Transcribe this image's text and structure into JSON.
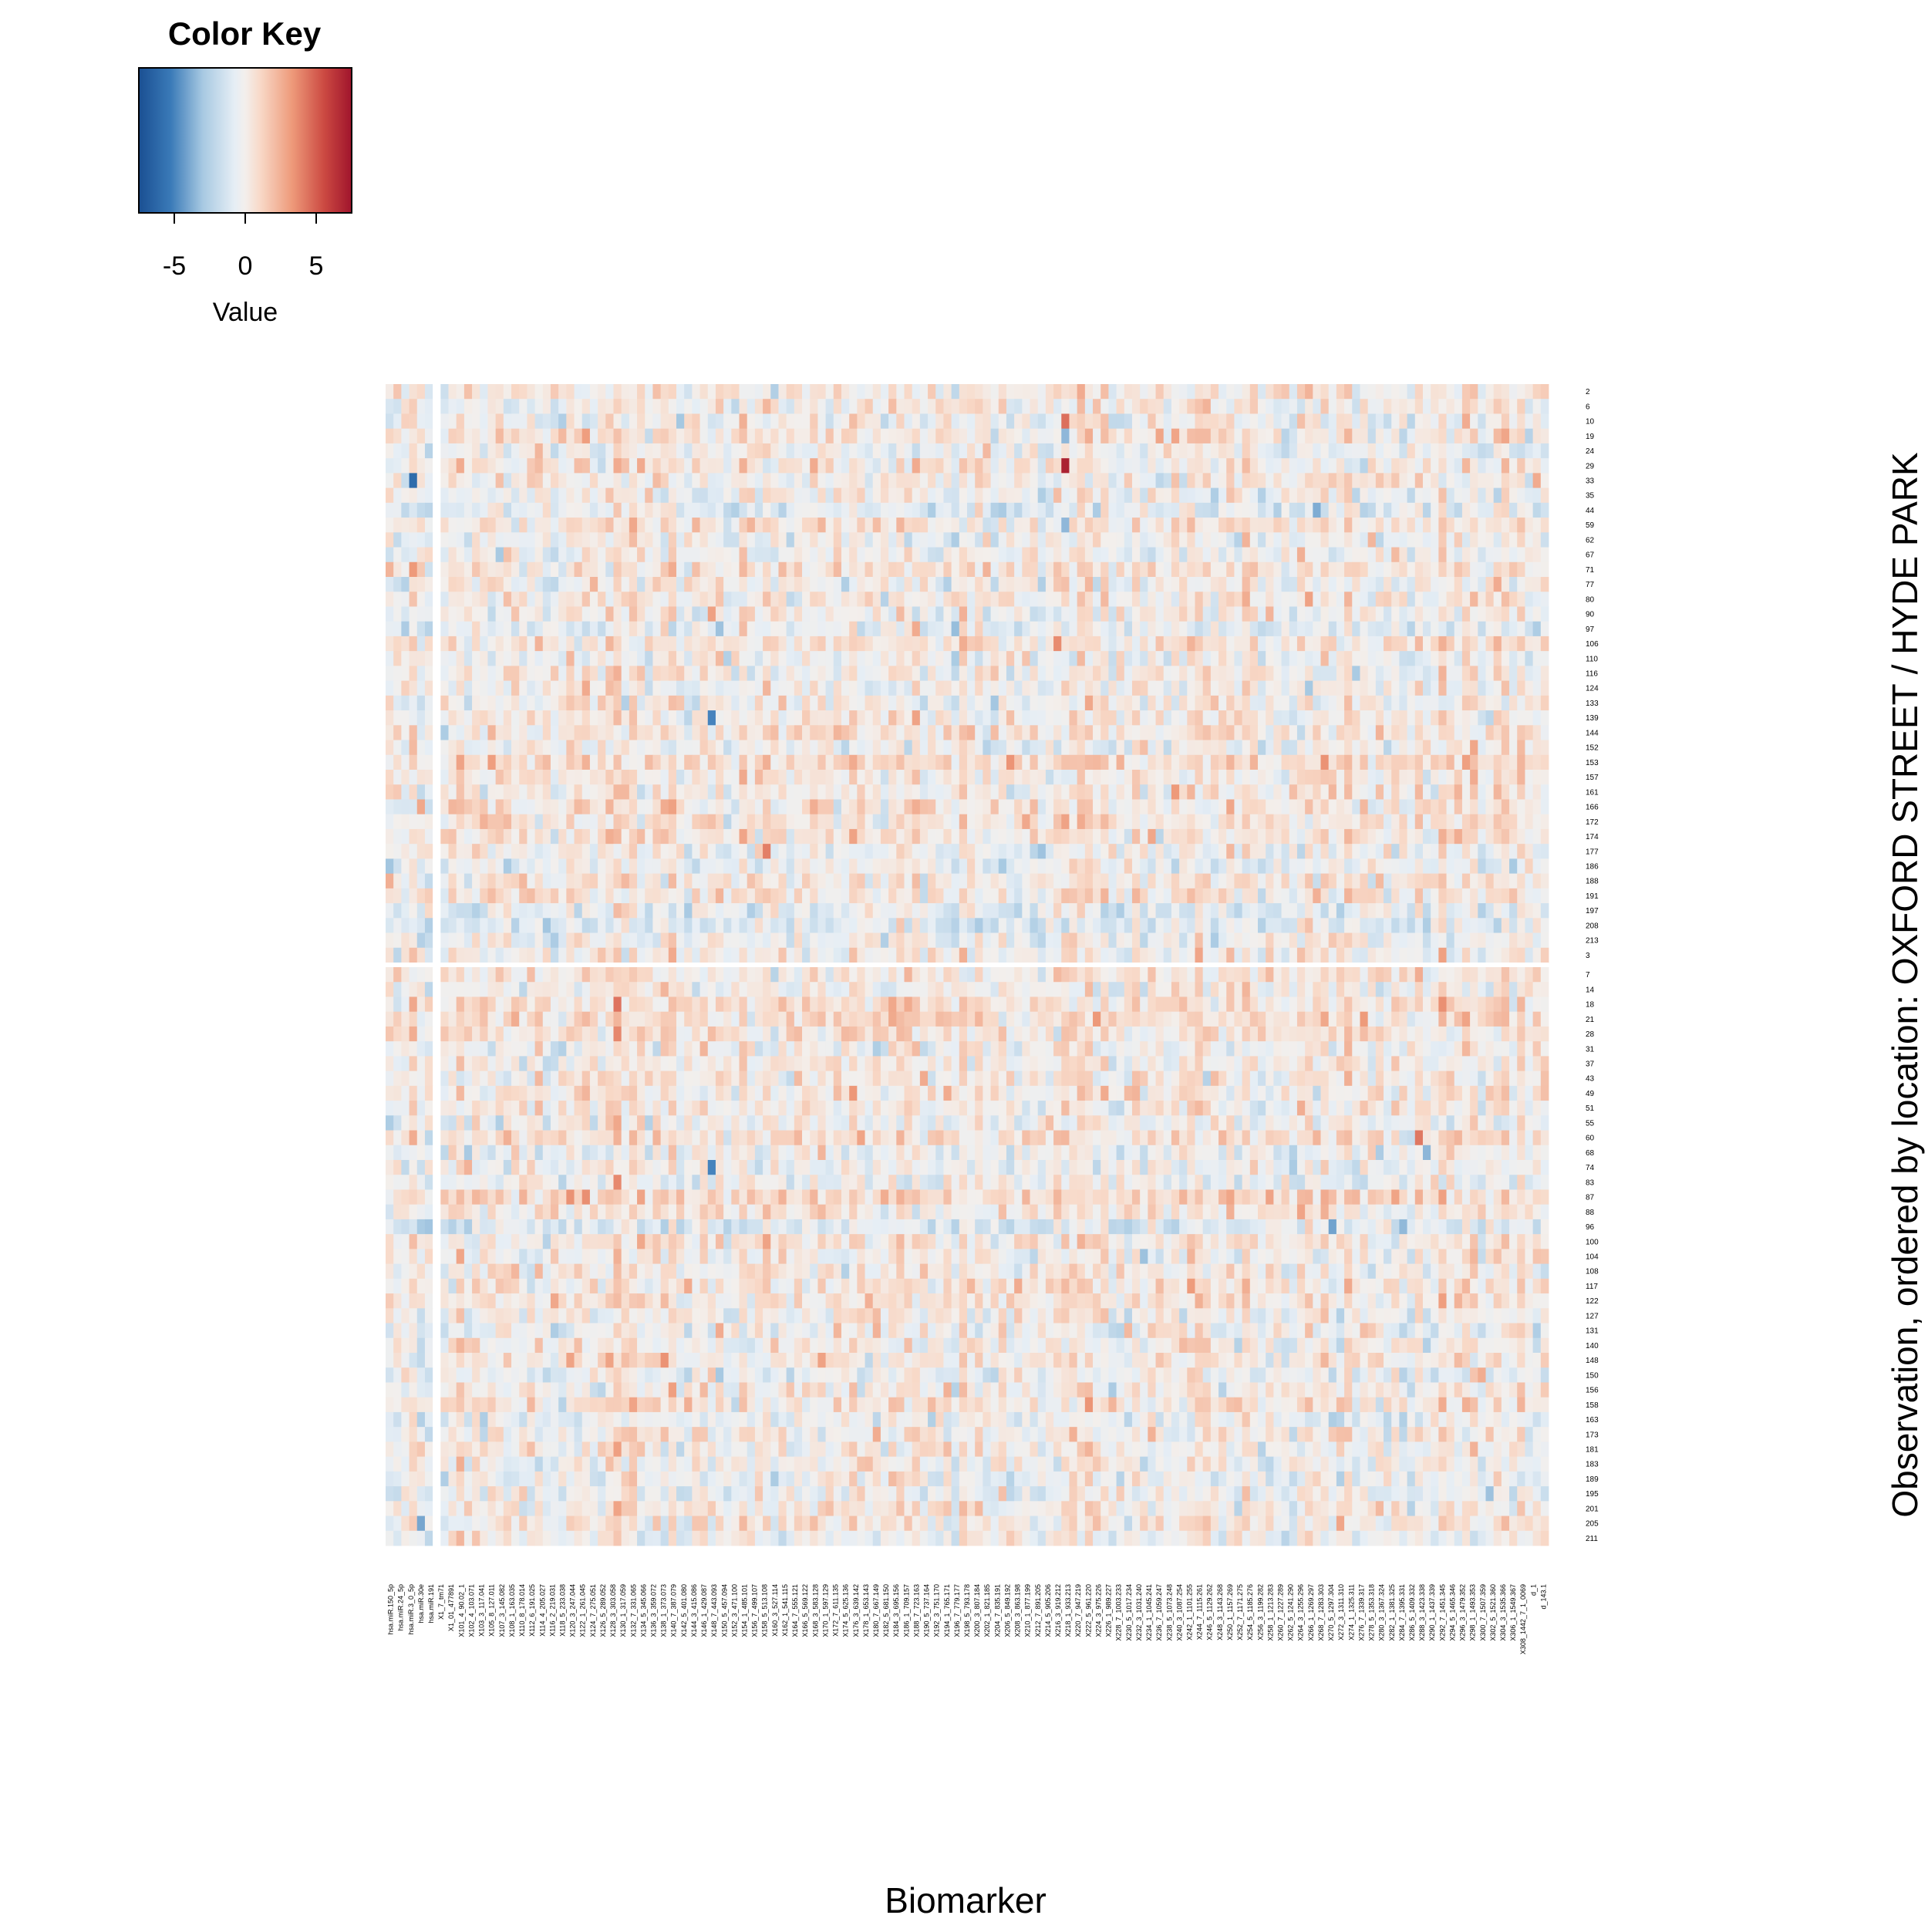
{
  "chart_data": {
    "type": "heatmap",
    "title": "",
    "xlabel": "Biomarker",
    "ylabel": "Observation, ordered by location: OXFORD STREET / HYDE PARK",
    "color_key": {
      "title": "Color Key",
      "label": "Value",
      "ticks": [
        -5,
        0,
        5
      ],
      "tick_labels": [
        "-5",
        "0",
        "5"
      ],
      "range": [
        -7.5,
        7.5
      ],
      "colors": [
        "#1f5fa6",
        "#eef1f4",
        "#b2182b"
      ]
    },
    "row_groups": [
      {
        "name": "OXFORD STREET",
        "rows": 39
      },
      {
        "name": "HYDE PARK",
        "rows": 39
      }
    ],
    "row_labels": [
      "2",
      "6",
      "10",
      "19",
      "24",
      "29",
      "33",
      "35",
      "44",
      "59",
      "62",
      "67",
      "71",
      "77",
      "80",
      "90",
      "97",
      "106",
      "110",
      "116",
      "124",
      "133",
      "139",
      "144",
      "152",
      "153",
      "157",
      "161",
      "166",
      "172",
      "174",
      "177",
      "186",
      "188",
      "191",
      "197",
      "208",
      "213",
      "3",
      "7",
      "14",
      "18",
      "21",
      "28",
      "31",
      "37",
      "43",
      "49",
      "51",
      "55",
      "60",
      "68",
      "74",
      "83",
      "87",
      "88",
      "96",
      "100",
      "104",
      "108",
      "117",
      "122",
      "127",
      "131",
      "140",
      "148",
      "150",
      "156",
      "158",
      "163",
      "173",
      "181",
      "183",
      "189",
      "195",
      "201",
      "205",
      "211"
    ],
    "column_labels": [
      "hsa.miR.150_5p",
      "hsa.miR.24_5p",
      "hsa.miR.3_0_5p",
      "hsa.miR.30e",
      "hsa.miR.191",
      "X1_7_tm71",
      "X1_01_477891",
      "X101_4_90.02_1",
      "X102_4_103.071",
      "X103_3_117.041",
      "X105_8_127.011",
      "X107_3_145.082",
      "X108_1_163.035",
      "X110_8_178.014",
      "X112_6_191.025",
      "X114_4_205.027",
      "X116_2_219.031",
      "X118_5_233.038",
      "X120_3_247.044",
      "X122_1_261.045",
      "X124_7_275.051",
      "X126_5_289.052",
      "X128_3_303.058",
      "X130_1_317.059",
      "X132_7_331.065",
      "X134_5_345.066",
      "X136_3_359.072",
      "X138_1_373.073",
      "X140_7_387.079",
      "X142_5_401.080",
      "X144_3_415.086",
      "X146_1_429.087",
      "X148_7_443.093",
      "X150_5_457.094",
      "X152_3_471.100",
      "X154_1_485.101",
      "X156_7_499.107",
      "X158_5_513.108",
      "X160_3_527.114",
      "X162_1_541.115",
      "X164_7_555.121",
      "X166_5_569.122",
      "X168_3_583.128",
      "X170_1_597.129",
      "X172_7_611.135",
      "X174_5_625.136",
      "X176_3_639.142",
      "X178_1_653.143",
      "X180_7_667.149",
      "X182_5_681.150",
      "X184_3_695.156",
      "X186_1_709.157",
      "X188_7_723.163",
      "X190_5_737.164",
      "X192_3_751.170",
      "X194_1_765.171",
      "X196_7_779.177",
      "X198_5_793.178",
      "X200_3_807.184",
      "X202_1_821.185",
      "X204_7_835.191",
      "X206_5_849.192",
      "X208_3_863.198",
      "X210_1_877.199",
      "X212_7_891.205",
      "X214_5_905.206",
      "X216_3_919.212",
      "X218_1_933.213",
      "X220_7_947.219",
      "X222_5_961.220",
      "X224_3_975.226",
      "X226_1_989.227",
      "X228_7_1003.233",
      "X230_5_1017.234",
      "X232_3_1031.240",
      "X234_1_1045.241",
      "X236_7_1059.247",
      "X238_5_1073.248",
      "X240_3_1087.254",
      "X242_1_1101.255",
      "X244_7_1115.261",
      "X246_5_1129.262",
      "X248_3_1143.268",
      "X250_1_1157.269",
      "X252_7_1171.275",
      "X254_5_1185.276",
      "X256_3_1199.282",
      "X258_1_1213.283",
      "X260_7_1227.289",
      "X262_5_1241.290",
      "X264_3_1255.296",
      "X266_1_1269.297",
      "X268_7_1283.303",
      "X270_5_1297.304",
      "X272_3_1311.310",
      "X274_1_1325.311",
      "X276_7_1339.317",
      "X278_5_1353.318",
      "X280_3_1367.324",
      "X282_1_1381.325",
      "X284_7_1395.331",
      "X286_5_1409.332",
      "X288_3_1423.338",
      "X290_1_1437.339",
      "X292_7_1451.345",
      "X294_5_1465.346",
      "X296_3_1479.352",
      "X298_1_1493.353",
      "X300_7_1507.359",
      "X302_5_1521.360",
      "X304_3_1535.366",
      "X306_1_1549.367",
      "X308_1442_7_1_0069",
      "d_1",
      "d_143.1"
    ],
    "n_columns": 148,
    "values_note": "",
    "highlights": [
      {
        "row": "10",
        "col_index": 86,
        "value": 4.5
      },
      {
        "row": "29",
        "col_index": 86,
        "value": 7.0
      },
      {
        "row": "19",
        "col_index": 86,
        "value": -3.5
      },
      {
        "row": "59",
        "col_index": 86,
        "value": -3.5
      },
      {
        "row": "33",
        "col_index": 3,
        "value": -6.0
      },
      {
        "row": "139",
        "col_index": 41,
        "value": -5.0
      },
      {
        "row": "74",
        "col_index": 41,
        "value": -5.0
      },
      {
        "row": "124",
        "col_index": 117,
        "value": -3.0
      },
      {
        "row": "205",
        "col_index": 4,
        "value": -4.0
      },
      {
        "row": "148",
        "col_index": 35,
        "value": 3.5
      },
      {
        "row": "148",
        "col_index": 55,
        "value": 3.0
      }
    ]
  }
}
